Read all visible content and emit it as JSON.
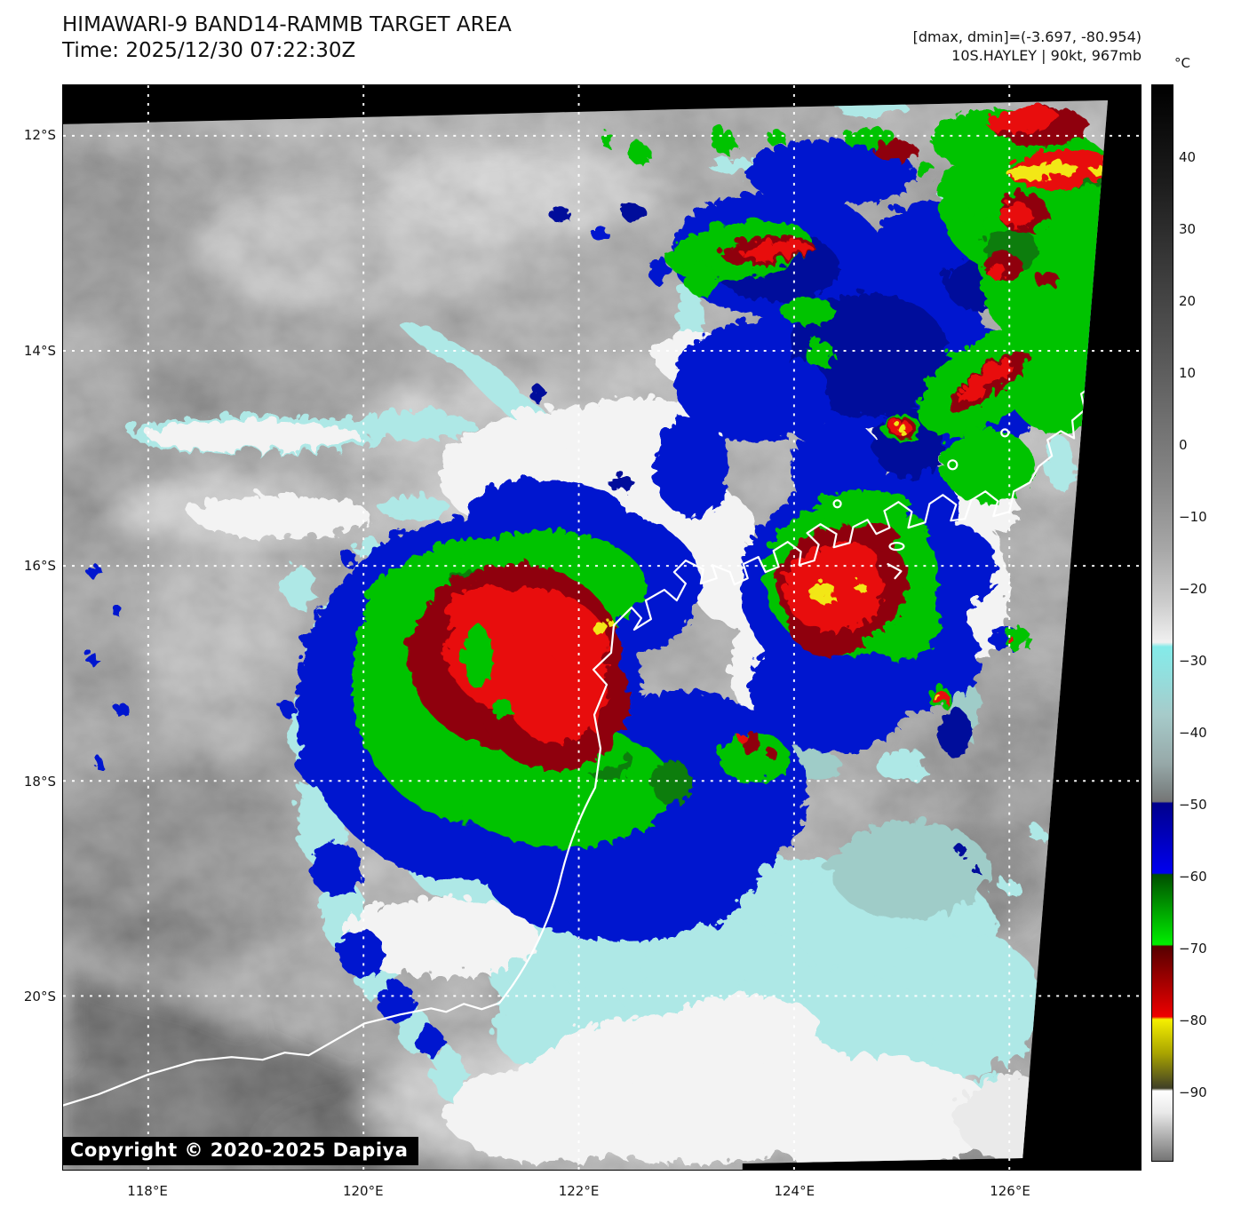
{
  "header": {
    "title": "HIMAWARI-9 BAND14-RAMMB TARGET AREA",
    "time_line": "Time: 2025/12/30 07:22:30Z",
    "stats_line": "[dmax, dmin]=(-3.697, -80.954)",
    "storm_line": "10S.HAYLEY | 90kt, 967mb"
  },
  "colorbar": {
    "unit": "°C",
    "tick_labels": [
      "40",
      "30",
      "20",
      "10",
      "0",
      "−10",
      "−20",
      "−30",
      "−40",
      "−50",
      "−60",
      "−70",
      "−80",
      "−90"
    ],
    "range_c": [
      50,
      -100
    ]
  },
  "axes": {
    "x_tick_labels": [
      "118°E",
      "120°E",
      "122°E",
      "124°E",
      "126°E"
    ],
    "y_tick_labels": [
      "12°S",
      "14°S",
      "16°S",
      "18°S",
      "20°S"
    ]
  },
  "map": {
    "copyright": "Copyright © 2020-2025 Dapiya",
    "satellite": "HIMAWARI-9",
    "band": "BAND14",
    "product": "RAMMB TARGET AREA",
    "storm_id": "10S",
    "storm_name": "HAYLEY",
    "intensity": "90kt",
    "pressure": "967mb"
  }
}
